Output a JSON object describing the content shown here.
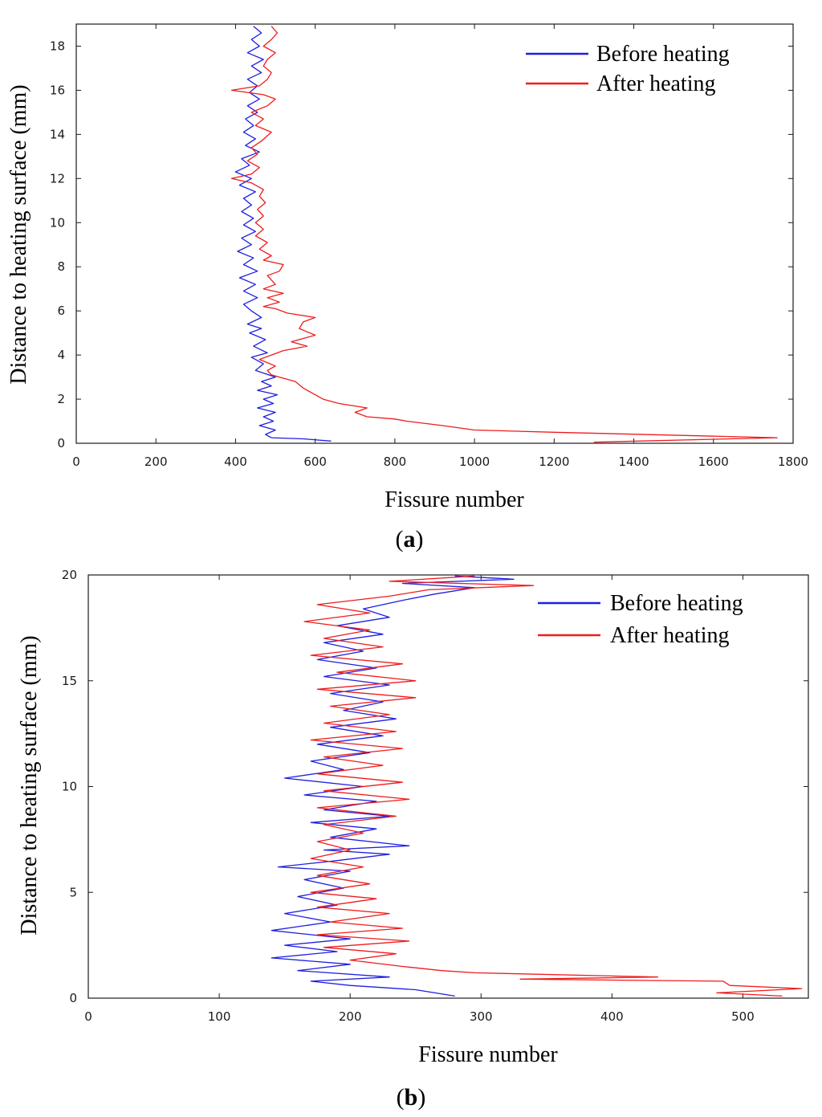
{
  "chart_data": [
    {
      "panel": "a",
      "type": "line",
      "orientation": "profile (x = value, y = depth)",
      "xlabel": "Fissure number",
      "ylabel": "Distance to heating surface (mm)",
      "xlim": [
        0,
        1800
      ],
      "ylim": [
        0,
        19
      ],
      "xticks": [
        0,
        200,
        400,
        600,
        800,
        1000,
        1200,
        1400,
        1600,
        1800
      ],
      "yticks": [
        0,
        2,
        4,
        6,
        8,
        10,
        12,
        14,
        16,
        18
      ],
      "legend_position": "top-right",
      "panel_label": {
        "open": "(",
        "letter": "a",
        "close": ")"
      },
      "series": [
        {
          "name": "Before heating",
          "color": "#1f1fe0",
          "points": [
            [
              640,
              0.1
            ],
            [
              570,
              0.2
            ],
            [
              490,
              0.25
            ],
            [
              475,
              0.4
            ],
            [
              500,
              0.6
            ],
            [
              460,
              0.8
            ],
            [
              495,
              1.0
            ],
            [
              470,
              1.2
            ],
            [
              500,
              1.4
            ],
            [
              455,
              1.6
            ],
            [
              495,
              1.8
            ],
            [
              470,
              2.0
            ],
            [
              505,
              2.2
            ],
            [
              455,
              2.4
            ],
            [
              490,
              2.6
            ],
            [
              465,
              2.8
            ],
            [
              500,
              3.0
            ],
            [
              450,
              3.3
            ],
            [
              470,
              3.6
            ],
            [
              440,
              3.9
            ],
            [
              480,
              4.1
            ],
            [
              445,
              4.4
            ],
            [
              475,
              4.7
            ],
            [
              435,
              5.0
            ],
            [
              465,
              5.2
            ],
            [
              430,
              5.4
            ],
            [
              465,
              5.7
            ],
            [
              440,
              6.0
            ],
            [
              420,
              6.3
            ],
            [
              455,
              6.6
            ],
            [
              420,
              6.9
            ],
            [
              450,
              7.2
            ],
            [
              410,
              7.5
            ],
            [
              455,
              7.8
            ],
            [
              420,
              8.1
            ],
            [
              445,
              8.4
            ],
            [
              405,
              8.7
            ],
            [
              440,
              9.0
            ],
            [
              415,
              9.3
            ],
            [
              450,
              9.6
            ],
            [
              420,
              9.9
            ],
            [
              445,
              10.2
            ],
            [
              415,
              10.5
            ],
            [
              440,
              10.8
            ],
            [
              420,
              11.1
            ],
            [
              450,
              11.4
            ],
            [
              410,
              11.7
            ],
            [
              440,
              12.0
            ],
            [
              400,
              12.3
            ],
            [
              435,
              12.6
            ],
            [
              415,
              12.9
            ],
            [
              460,
              13.2
            ],
            [
              425,
              13.5
            ],
            [
              450,
              13.8
            ],
            [
              420,
              14.1
            ],
            [
              445,
              14.4
            ],
            [
              425,
              14.7
            ],
            [
              455,
              15.0
            ],
            [
              430,
              15.3
            ],
            [
              460,
              15.6
            ],
            [
              435,
              15.9
            ],
            [
              455,
              16.2
            ],
            [
              430,
              16.5
            ],
            [
              465,
              16.8
            ],
            [
              440,
              17.1
            ],
            [
              470,
              17.4
            ],
            [
              430,
              17.7
            ],
            [
              460,
              18.0
            ],
            [
              440,
              18.3
            ],
            [
              465,
              18.6
            ],
            [
              445,
              18.9
            ]
          ]
        },
        {
          "name": "After heating",
          "color": "#ee1c1c",
          "points": [
            [
              1300,
              0.05
            ],
            [
              1760,
              0.25
            ],
            [
              1200,
              0.5
            ],
            [
              1000,
              0.6
            ],
            [
              920,
              0.8
            ],
            [
              830,
              1.0
            ],
            [
              800,
              1.1
            ],
            [
              730,
              1.2
            ],
            [
              700,
              1.4
            ],
            [
              730,
              1.6
            ],
            [
              660,
              1.8
            ],
            [
              620,
              2.0
            ],
            [
              600,
              2.2
            ],
            [
              570,
              2.5
            ],
            [
              550,
              2.8
            ],
            [
              510,
              3.0
            ],
            [
              490,
              3.1
            ],
            [
              480,
              3.3
            ],
            [
              500,
              3.5
            ],
            [
              460,
              3.8
            ],
            [
              490,
              4.0
            ],
            [
              520,
              4.2
            ],
            [
              580,
              4.4
            ],
            [
              540,
              4.6
            ],
            [
              600,
              4.9
            ],
            [
              560,
              5.2
            ],
            [
              570,
              5.5
            ],
            [
              600,
              5.7
            ],
            [
              530,
              5.9
            ],
            [
              500,
              6.1
            ],
            [
              470,
              6.2
            ],
            [
              510,
              6.4
            ],
            [
              480,
              6.6
            ],
            [
              520,
              6.8
            ],
            [
              470,
              7.0
            ],
            [
              500,
              7.2
            ],
            [
              490,
              7.4
            ],
            [
              480,
              7.6
            ],
            [
              510,
              7.8
            ],
            [
              520,
              8.1
            ],
            [
              470,
              8.3
            ],
            [
              490,
              8.5
            ],
            [
              460,
              8.8
            ],
            [
              480,
              9.1
            ],
            [
              450,
              9.4
            ],
            [
              470,
              9.7
            ],
            [
              450,
              10.0
            ],
            [
              470,
              10.3
            ],
            [
              455,
              10.6
            ],
            [
              475,
              10.9
            ],
            [
              460,
              11.2
            ],
            [
              470,
              11.5
            ],
            [
              440,
              11.8
            ],
            [
              390,
              12.0
            ],
            [
              440,
              12.2
            ],
            [
              460,
              12.5
            ],
            [
              430,
              12.8
            ],
            [
              455,
              13.1
            ],
            [
              440,
              13.4
            ],
            [
              465,
              13.7
            ],
            [
              490,
              14.1
            ],
            [
              450,
              14.4
            ],
            [
              470,
              14.7
            ],
            [
              440,
              15.0
            ],
            [
              480,
              15.3
            ],
            [
              500,
              15.6
            ],
            [
              470,
              15.8
            ],
            [
              390,
              16.0
            ],
            [
              460,
              16.2
            ],
            [
              480,
              16.5
            ],
            [
              490,
              16.8
            ],
            [
              470,
              17.1
            ],
            [
              480,
              17.4
            ],
            [
              500,
              17.7
            ],
            [
              470,
              18.0
            ],
            [
              490,
              18.3
            ],
            [
              505,
              18.6
            ],
            [
              490,
              18.9
            ]
          ]
        }
      ]
    },
    {
      "panel": "b",
      "type": "line",
      "orientation": "profile (x = value, y = depth)",
      "xlabel": "Fissure number",
      "ylabel": "Distance to heating surface (mm)",
      "xlim": [
        0,
        550
      ],
      "ylim": [
        0,
        20
      ],
      "xticks": [
        0,
        100,
        200,
        300,
        400,
        500
      ],
      "yticks": [
        0,
        5,
        10,
        15,
        20
      ],
      "legend_position": "top-right",
      "panel_label": {
        "open": "(",
        "letter": "b",
        "close": ")"
      },
      "series": [
        {
          "name": "Before heating",
          "color": "#1f1fe0",
          "points": [
            [
              280,
              0.1
            ],
            [
              250,
              0.4
            ],
            [
              200,
              0.6
            ],
            [
              170,
              0.8
            ],
            [
              230,
              1.0
            ],
            [
              160,
              1.3
            ],
            [
              200,
              1.6
            ],
            [
              140,
              1.9
            ],
            [
              190,
              2.2
            ],
            [
              150,
              2.5
            ],
            [
              200,
              2.8
            ],
            [
              140,
              3.2
            ],
            [
              185,
              3.6
            ],
            [
              150,
              4.0
            ],
            [
              190,
              4.4
            ],
            [
              160,
              4.8
            ],
            [
              195,
              5.2
            ],
            [
              165,
              5.6
            ],
            [
              200,
              6.0
            ],
            [
              145,
              6.2
            ],
            [
              190,
              6.5
            ],
            [
              230,
              6.8
            ],
            [
              180,
              7.0
            ],
            [
              245,
              7.2
            ],
            [
              185,
              7.6
            ],
            [
              220,
              8.0
            ],
            [
              170,
              8.3
            ],
            [
              230,
              8.6
            ],
            [
              180,
              8.9
            ],
            [
              220,
              9.3
            ],
            [
              165,
              9.6
            ],
            [
              210,
              10.0
            ],
            [
              150,
              10.4
            ],
            [
              195,
              10.8
            ],
            [
              170,
              11.2
            ],
            [
              215,
              11.6
            ],
            [
              175,
              12.0
            ],
            [
              225,
              12.4
            ],
            [
              185,
              12.8
            ],
            [
              235,
              13.2
            ],
            [
              195,
              13.6
            ],
            [
              225,
              14.0
            ],
            [
              185,
              14.4
            ],
            [
              230,
              14.8
            ],
            [
              180,
              15.2
            ],
            [
              220,
              15.6
            ],
            [
              175,
              16.0
            ],
            [
              210,
              16.4
            ],
            [
              180,
              16.8
            ],
            [
              225,
              17.2
            ],
            [
              190,
              17.6
            ],
            [
              230,
              18.0
            ],
            [
              210,
              18.4
            ],
            [
              240,
              18.8
            ],
            [
              265,
              19.1
            ],
            [
              295,
              19.4
            ],
            [
              240,
              19.6
            ],
            [
              325,
              19.8
            ],
            [
              280,
              19.95
            ]
          ]
        },
        {
          "name": "After heating",
          "color": "#ee1c1c",
          "points": [
            [
              530,
              0.1
            ],
            [
              480,
              0.25
            ],
            [
              545,
              0.45
            ],
            [
              490,
              0.6
            ],
            [
              485,
              0.8
            ],
            [
              330,
              0.9
            ],
            [
              435,
              1.0
            ],
            [
              295,
              1.2
            ],
            [
              270,
              1.3
            ],
            [
              240,
              1.5
            ],
            [
              200,
              1.8
            ],
            [
              235,
              2.1
            ],
            [
              180,
              2.4
            ],
            [
              245,
              2.7
            ],
            [
              175,
              3.0
            ],
            [
              240,
              3.3
            ],
            [
              185,
              3.6
            ],
            [
              230,
              4.0
            ],
            [
              175,
              4.3
            ],
            [
              220,
              4.7
            ],
            [
              170,
              5.0
            ],
            [
              215,
              5.4
            ],
            [
              175,
              5.8
            ],
            [
              210,
              6.2
            ],
            [
              170,
              6.6
            ],
            [
              200,
              7.0
            ],
            [
              175,
              7.4
            ],
            [
              210,
              7.8
            ],
            [
              180,
              8.2
            ],
            [
              235,
              8.6
            ],
            [
              175,
              9.0
            ],
            [
              245,
              9.4
            ],
            [
              180,
              9.8
            ],
            [
              240,
              10.2
            ],
            [
              175,
              10.6
            ],
            [
              225,
              11.0
            ],
            [
              180,
              11.4
            ],
            [
              240,
              11.8
            ],
            [
              170,
              12.2
            ],
            [
              235,
              12.6
            ],
            [
              180,
              13.0
            ],
            [
              230,
              13.4
            ],
            [
              185,
              13.8
            ],
            [
              250,
              14.2
            ],
            [
              175,
              14.6
            ],
            [
              250,
              15.0
            ],
            [
              190,
              15.4
            ],
            [
              240,
              15.8
            ],
            [
              170,
              16.2
            ],
            [
              225,
              16.6
            ],
            [
              180,
              17.0
            ],
            [
              215,
              17.4
            ],
            [
              165,
              17.8
            ],
            [
              215,
              18.2
            ],
            [
              175,
              18.6
            ],
            [
              230,
              19.0
            ],
            [
              260,
              19.3
            ],
            [
              340,
              19.5
            ],
            [
              230,
              19.7
            ],
            [
              295,
              19.95
            ]
          ]
        }
      ]
    }
  ]
}
